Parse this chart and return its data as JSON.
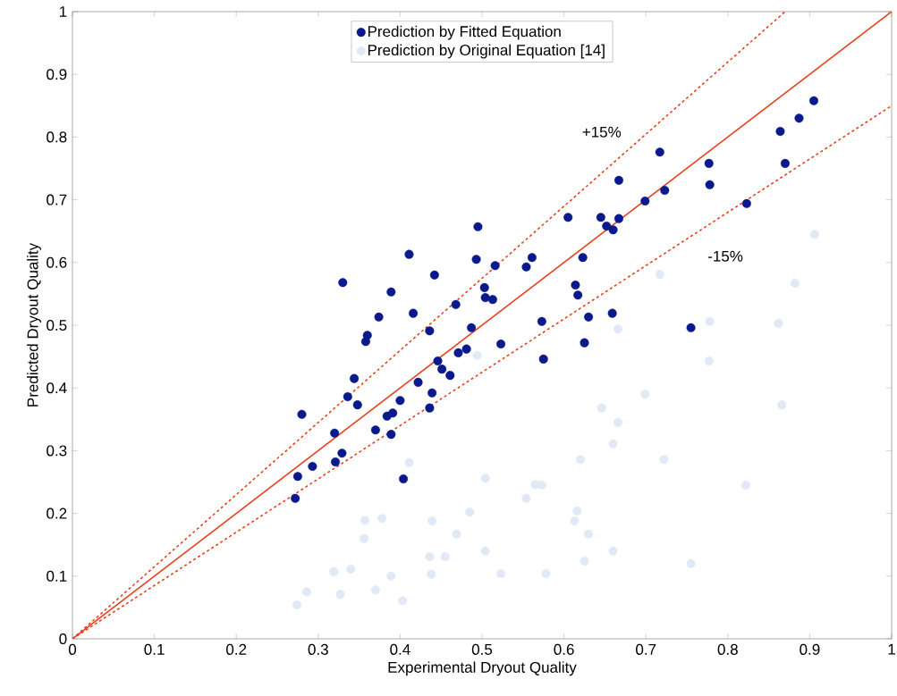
{
  "chart_data": {
    "type": "scatter",
    "xlabel": "Experimental Dryout Quality",
    "ylabel": "Predicted Dryout Quality",
    "xlim": [
      0,
      1
    ],
    "ylim": [
      0,
      1
    ],
    "xticks": [
      0,
      0.1,
      0.2,
      0.3,
      0.4,
      0.5,
      0.6,
      0.7,
      0.8,
      0.9,
      1
    ],
    "yticks": [
      0,
      0.1,
      0.2,
      0.3,
      0.4,
      0.5,
      0.6,
      0.7,
      0.8,
      0.9,
      1
    ],
    "legend": "top",
    "grid": false,
    "series": [
      {
        "name": "Prediction by Fitted Equation",
        "color": "#0a1a8c",
        "x": [
          0.272,
          0.275,
          0.28,
          0.293,
          0.321,
          0.329,
          0.32,
          0.33,
          0.336,
          0.344,
          0.348,
          0.358,
          0.36,
          0.37,
          0.374,
          0.384,
          0.389,
          0.389,
          0.391,
          0.4,
          0.404,
          0.411,
          0.416,
          0.422,
          0.436,
          0.436,
          0.439,
          0.442,
          0.446,
          0.451,
          0.461,
          0.468,
          0.471,
          0.481,
          0.487,
          0.493,
          0.495,
          0.503,
          0.504,
          0.513,
          0.516,
          0.523,
          0.554,
          0.561,
          0.573,
          0.575,
          0.605,
          0.614,
          0.617,
          0.623,
          0.625,
          0.63,
          0.645,
          0.652,
          0.66,
          0.659,
          0.667,
          0.667,
          0.699,
          0.717,
          0.723,
          0.755,
          0.777,
          0.778,
          0.823,
          0.864,
          0.87,
          0.887,
          0.905
        ],
        "values": [
          0.224,
          0.259,
          0.358,
          0.275,
          0.282,
          0.296,
          0.328,
          0.568,
          0.386,
          0.415,
          0.373,
          0.474,
          0.484,
          0.333,
          0.513,
          0.355,
          0.326,
          0.553,
          0.36,
          0.38,
          0.255,
          0.613,
          0.519,
          0.409,
          0.491,
          0.368,
          0.392,
          0.58,
          0.443,
          0.43,
          0.42,
          0.533,
          0.456,
          0.462,
          0.496,
          0.605,
          0.657,
          0.56,
          0.544,
          0.541,
          0.595,
          0.47,
          0.593,
          0.608,
          0.506,
          0.446,
          0.672,
          0.564,
          0.548,
          0.608,
          0.472,
          0.513,
          0.672,
          0.658,
          0.652,
          0.519,
          0.67,
          0.731,
          0.698,
          0.776,
          0.715,
          0.496,
          0.758,
          0.724,
          0.694,
          0.809,
          0.758,
          0.83,
          0.858
        ]
      },
      {
        "name": "Prediction by Original Equation [14]",
        "color": "#e2e9f6",
        "x": [
          0.411,
          0.504,
          0.565,
          0.554,
          0.485,
          0.378,
          0.357,
          0.439,
          0.469,
          0.356,
          0.504,
          0.436,
          0.455,
          0.34,
          0.319,
          0.389,
          0.438,
          0.578,
          0.523,
          0.286,
          0.327,
          0.37,
          0.403,
          0.274,
          0.777,
          0.699,
          0.646,
          0.866,
          0.666,
          0.66,
          0.62,
          0.722,
          0.573,
          0.822,
          0.616,
          0.613,
          0.63,
          0.66,
          0.625,
          0.755,
          0.906,
          0.717,
          0.862,
          0.882,
          0.666,
          0.778,
          0.494
        ],
        "values": [
          0.281,
          0.256,
          0.246,
          0.224,
          0.202,
          0.192,
          0.189,
          0.188,
          0.167,
          0.16,
          0.14,
          0.131,
          0.131,
          0.111,
          0.107,
          0.1,
          0.103,
          0.104,
          0.104,
          0.075,
          0.071,
          0.078,
          0.061,
          0.054,
          0.443,
          0.39,
          0.368,
          0.373,
          0.345,
          0.311,
          0.286,
          0.286,
          0.245,
          0.245,
          0.204,
          0.188,
          0.167,
          0.14,
          0.124,
          0.12,
          0.645,
          0.581,
          0.503,
          0.567,
          0.494,
          0.506,
          0.452
        ]
      },
      {
        "type": "line",
        "color": "#e8401c",
        "marker": "none",
        "line_style": "solid",
        "x": [
          0,
          1
        ],
        "values": [
          0,
          1
        ]
      },
      {
        "type": "line",
        "color": "#e8401c",
        "marker": "none",
        "line_style": "dashed",
        "x": [
          0,
          0.87
        ],
        "values": [
          0,
          1
        ]
      },
      {
        "type": "line",
        "color": "#e8401c",
        "marker": "none",
        "line_style": "dashed",
        "x": [
          0,
          1
        ],
        "values": [
          0,
          0.85
        ]
      }
    ],
    "annotations": [
      "+15%",
      "-15%"
    ]
  }
}
